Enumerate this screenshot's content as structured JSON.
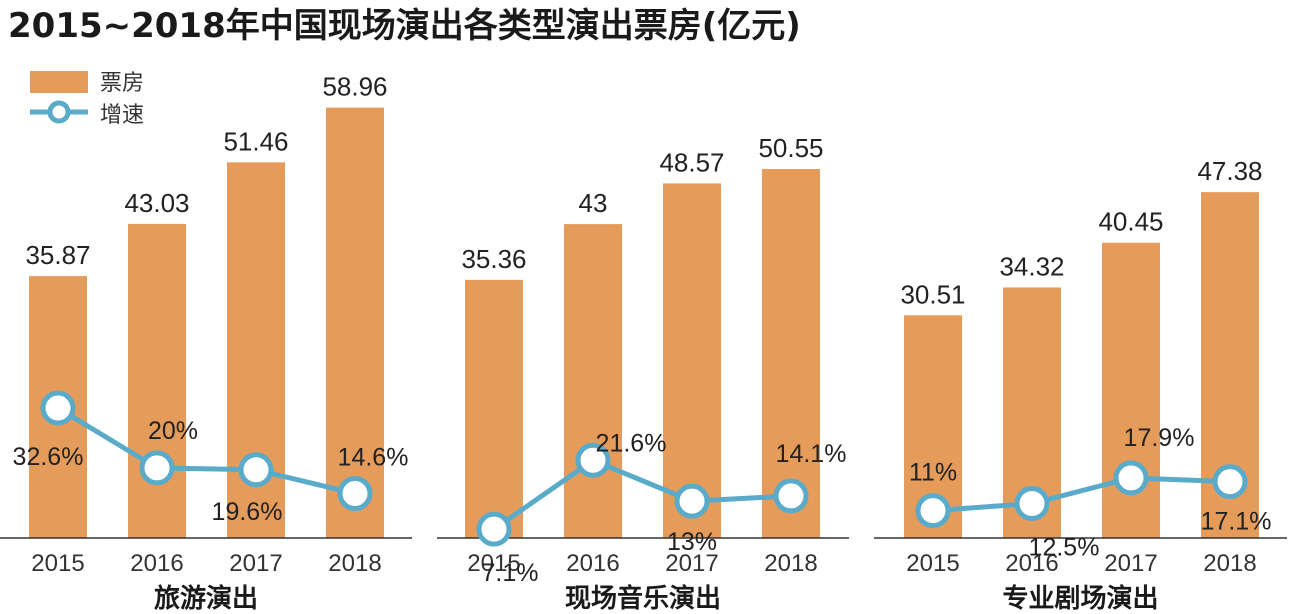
{
  "title": "2015~2018年中国现场演出各类型演出票房(亿元)",
  "legend": {
    "bar_label": "票房",
    "line_label": "增速"
  },
  "colors": {
    "bar": "#E59B5A",
    "line": "#5AAAC9",
    "axis": "#333333"
  },
  "chart_data": [
    {
      "type": "bar",
      "title": "旅游演出",
      "categories": [
        "2015",
        "2016",
        "2017",
        "2018"
      ],
      "series": [
        {
          "name": "票房",
          "type": "bar",
          "values": [
            35.87,
            43.03,
            51.46,
            58.96
          ],
          "labels": [
            "35.87",
            "43.03",
            "51.46",
            "58.96"
          ]
        },
        {
          "name": "增速",
          "type": "line",
          "values": [
            32.6,
            20,
            19.6,
            14.6
          ],
          "labels": [
            "32.6%",
            "20%",
            "19.6%",
            "14.6%"
          ]
        }
      ]
    },
    {
      "type": "bar",
      "title": "现场音乐演出",
      "categories": [
        "2015",
        "2016",
        "2017",
        "2018"
      ],
      "series": [
        {
          "name": "票房",
          "type": "bar",
          "values": [
            35.36,
            43,
            48.57,
            50.55
          ],
          "labels": [
            "35.36",
            "43",
            "48.57",
            "50.55"
          ]
        },
        {
          "name": "增速",
          "type": "line",
          "values": [
            7.1,
            21.6,
            13,
            14.1
          ],
          "labels": [
            "7.1%",
            "21.6%",
            "13%",
            "14.1%"
          ]
        }
      ]
    },
    {
      "type": "bar",
      "title": "专业剧场演出",
      "categories": [
        "2015",
        "2016",
        "2017",
        "2018"
      ],
      "series": [
        {
          "name": "票房",
          "type": "bar",
          "values": [
            30.51,
            34.32,
            40.45,
            47.38
          ],
          "labels": [
            "30.51",
            "34.32",
            "40.45",
            "47.38"
          ]
        },
        {
          "name": "增速",
          "type": "line",
          "values": [
            11,
            12.5,
            17.9,
            17.1
          ],
          "labels": [
            "11%",
            "12.5%",
            "17.9%",
            "17.1%"
          ]
        }
      ]
    }
  ]
}
